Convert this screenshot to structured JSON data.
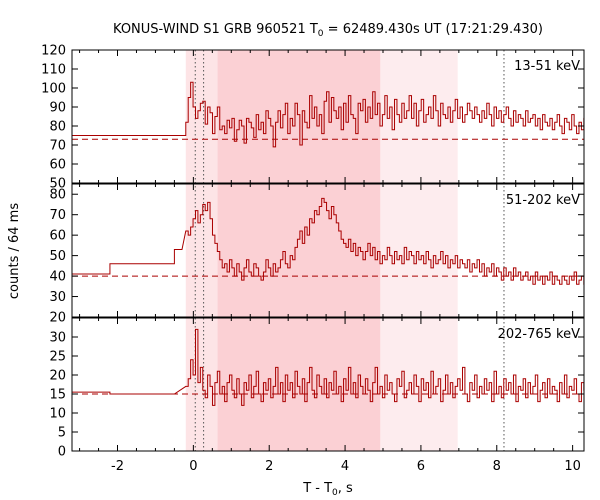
{
  "chart_data": {
    "type": "line",
    "title": "KONUS-WIND S1 GRB 960521 T0 = 62489.430s UT (17:21:29.430)",
    "title_parts": {
      "prefix": "KONUS-WIND S1 GRB 960521 T",
      "sub": "0",
      "suffix": " = 62489.430s UT (17:21:29.430)"
    },
    "xlabel": "T - T0, s",
    "xlabel_parts": {
      "prefix": "T - T",
      "sub": "0",
      "suffix": ", s"
    },
    "ylabel": "counts / 64 ms",
    "xlim": [
      -3.2,
      10.3
    ],
    "x_ticks": [
      -2,
      0,
      2,
      4,
      6,
      8,
      10
    ],
    "x_tick_labels": [
      "-2",
      "0",
      "2",
      "4",
      "6",
      "8",
      "10"
    ],
    "shaded_regions": [
      {
        "x0": -0.2,
        "x1": 4.93,
        "shade": "light"
      },
      {
        "x0": 0.64,
        "x1": 4.93,
        "shade": "dark"
      },
      {
        "x0": 4.93,
        "x1": 6.97,
        "shade": "faint"
      }
    ],
    "vertical_markers": [
      0.05,
      0.27,
      8.19
    ],
    "colors": {
      "series": "#aa0000",
      "band_light": "#fde4e6",
      "band_dark": "#fbd0d4",
      "band_faint": "#fdecee",
      "marker": "#555555"
    },
    "panels": [
      {
        "band": "13-51 keV",
        "ylim": [
          50,
          120
        ],
        "y_ticks": [
          50,
          60,
          70,
          80,
          90,
          100,
          110,
          120
        ],
        "y_tick_labels": [
          "50",
          "60",
          "70",
          "80",
          "90",
          "100",
          "110",
          "120"
        ],
        "background": 73,
        "pre_trigger": [
          {
            "x0": -3.2,
            "x1": -0.2,
            "y": 75
          }
        ],
        "counts": [
          82,
          95,
          103,
          90,
          84,
          88,
          92,
          93,
          81,
          90,
          87,
          76,
          85,
          90,
          78,
          80,
          76,
          83,
          79,
          84,
          72,
          78,
          83,
          80,
          71,
          84,
          82,
          79,
          74,
          86,
          78,
          82,
          76,
          88,
          84,
          80,
          69,
          82,
          88,
          79,
          86,
          92,
          76,
          84,
          80,
          92,
          86,
          70,
          88,
          82,
          79,
          96,
          84,
          90,
          80,
          86,
          76,
          93,
          98,
          82,
          95,
          88,
          84,
          90,
          78,
          92,
          82,
          96,
          86,
          84,
          76,
          92,
          88,
          94,
          82,
          90,
          84,
          98,
          86,
          92,
          80,
          86,
          96,
          84,
          90,
          78,
          94,
          86,
          82,
          92,
          84,
          88,
          96,
          84,
          92,
          80,
          88,
          94,
          82,
          86,
          90,
          84,
          96,
          88,
          80,
          92,
          86,
          84,
          90,
          82,
          88,
          94,
          84,
          90,
          82,
          86,
          92,
          88,
          84,
          90,
          86,
          82,
          88,
          84,
          92,
          86,
          80,
          90,
          84,
          88,
          82,
          86,
          90,
          84,
          80,
          88,
          82,
          86,
          84,
          80,
          88,
          82,
          84,
          86,
          80,
          84,
          78,
          86,
          82,
          80,
          84,
          78,
          82,
          86,
          80,
          76,
          84,
          82,
          78,
          86,
          80,
          76,
          82,
          78,
          84,
          80,
          76,
          82,
          78,
          80,
          76,
          82,
          78,
          76,
          80,
          74,
          78,
          76,
          82,
          76,
          78,
          74,
          80,
          76,
          78,
          74,
          76,
          72
        ]
      },
      {
        "band": "51-202 keV",
        "ylim": [
          20,
          85
        ],
        "y_ticks": [
          20,
          30,
          40,
          50,
          60,
          70,
          80
        ],
        "y_tick_labels": [
          "20",
          "30",
          "40",
          "50",
          "60",
          "70",
          "80"
        ],
        "background": 40,
        "pre_trigger": [
          {
            "x0": -3.2,
            "x1": -2.2,
            "y": 41
          },
          {
            "x0": -2.2,
            "x1": -0.5,
            "y": 46
          },
          {
            "x0": -0.5,
            "x1": -0.3,
            "y": 53
          }
        ],
        "counts": [
          62,
          60,
          64,
          68,
          72,
          66,
          70,
          75,
          72,
          76,
          68,
          60,
          56,
          52,
          48,
          44,
          46,
          42,
          48,
          44,
          40,
          46,
          42,
          38,
          44,
          48,
          42,
          40,
          46,
          44,
          40,
          38,
          42,
          48,
          44,
          40,
          46,
          42,
          44,
          48,
          52,
          46,
          44,
          50,
          48,
          54,
          58,
          62,
          56,
          64,
          60,
          68,
          66,
          72,
          70,
          74,
          78,
          76,
          72,
          68,
          74,
          70,
          66,
          62,
          58,
          56,
          54,
          58,
          52,
          56,
          50,
          54,
          52,
          48,
          52,
          56,
          50,
          54,
          48,
          52,
          46,
          50,
          48,
          54,
          50,
          46,
          52,
          48,
          50,
          46,
          54,
          48,
          52,
          50,
          46,
          52,
          48,
          50,
          46,
          52,
          48,
          44,
          50,
          46,
          48,
          52,
          46,
          50,
          44,
          48,
          46,
          50,
          44,
          48,
          46,
          44,
          48,
          42,
          46,
          44,
          48,
          42,
          46,
          40,
          44,
          42,
          46,
          40,
          44,
          42,
          38,
          44,
          40,
          42,
          38,
          44,
          40,
          42,
          38,
          40,
          42,
          38,
          40,
          36,
          42,
          38,
          40,
          36,
          40,
          38,
          42,
          36,
          40,
          38,
          36,
          40,
          38,
          36,
          40,
          38,
          42,
          36,
          38,
          40,
          36,
          38,
          40,
          36,
          38,
          34,
          40,
          36,
          38,
          34,
          38,
          36,
          34,
          38,
          36,
          40,
          34,
          38,
          36,
          34,
          38,
          36,
          34,
          36
        ]
      },
      {
        "band": "202-765 keV",
        "ylim": [
          0,
          35
        ],
        "y_ticks": [
          0,
          5,
          10,
          15,
          20,
          25,
          30
        ],
        "y_tick_labels": [
          "0",
          "5",
          "10",
          "15",
          "20",
          "25",
          "30"
        ],
        "background": 15,
        "pre_trigger": [
          {
            "x0": -3.2,
            "x1": -2.2,
            "y": 15.5
          },
          {
            "x0": -2.2,
            "x1": -0.5,
            "y": 15
          }
        ],
        "counts": [
          17,
          19,
          24,
          20,
          32,
          18,
          22,
          16,
          14,
          20,
          17,
          12,
          18,
          21,
          15,
          17,
          13,
          18,
          20,
          16,
          14,
          19,
          15,
          12,
          18,
          16,
          20,
          14,
          17,
          21,
          15,
          13,
          18,
          16,
          19,
          14,
          17,
          22,
          15,
          18,
          13,
          20,
          16,
          18,
          14,
          21,
          17,
          15,
          19,
          13,
          18,
          22,
          16,
          14,
          20,
          17,
          15,
          19,
          14,
          18,
          16,
          21,
          15,
          17,
          13,
          19,
          16,
          22,
          15,
          18,
          14,
          20,
          17,
          15,
          19,
          16,
          13,
          18,
          22,
          15,
          17,
          14,
          20,
          16,
          18,
          15,
          13,
          19,
          17,
          21,
          14,
          16,
          18,
          15,
          20,
          17,
          13,
          19,
          16,
          18,
          14,
          21,
          15,
          17,
          19,
          13,
          16,
          20,
          15,
          18,
          14,
          17,
          19,
          16,
          22,
          15,
          13,
          18,
          16,
          20,
          14,
          17,
          15,
          19,
          16,
          18,
          13,
          21,
          15,
          17,
          14,
          19,
          16,
          18,
          15,
          20,
          13,
          17,
          16,
          19,
          14,
          18,
          15,
          17,
          20,
          13,
          16,
          18,
          14,
          19,
          15,
          17,
          16,
          13,
          18,
          15,
          20,
          14,
          17,
          16,
          19,
          15,
          13,
          18,
          16,
          17,
          14,
          19,
          15,
          18,
          16,
          13,
          17,
          15,
          19,
          14,
          18,
          16,
          15,
          17,
          13,
          18,
          16,
          15,
          14,
          17,
          16,
          15
        ]
      }
    ]
  }
}
